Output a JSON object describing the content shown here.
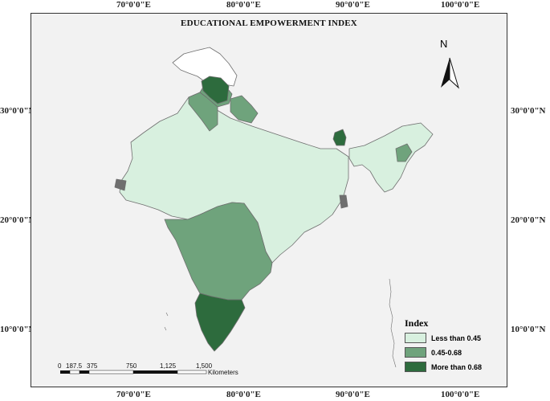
{
  "title": "EDUCATIONAL EMPOWERMENT INDEX",
  "longitude_ticks": [
    "70°0'0\"E",
    "80°0'0\"E",
    "90°0'0\"E",
    "100°0'0\"E"
  ],
  "latitude_ticks": [
    "30°0'0\"N",
    "20°0'0\"N",
    "10°0'0\"N"
  ],
  "north_label": "N",
  "legend": {
    "title": "Index",
    "items": [
      {
        "label": "Less than 0.45",
        "color": "#d8f0df"
      },
      {
        "label": "0.45-0.68",
        "color": "#6fa37c"
      },
      {
        "label": "More than 0.68",
        "color": "#2d6b3d"
      }
    ]
  },
  "scale_bar": {
    "labels": [
      "0",
      "187.5",
      "375",
      "750",
      "1,125",
      "1,500"
    ],
    "unit": "Kilometers"
  }
}
